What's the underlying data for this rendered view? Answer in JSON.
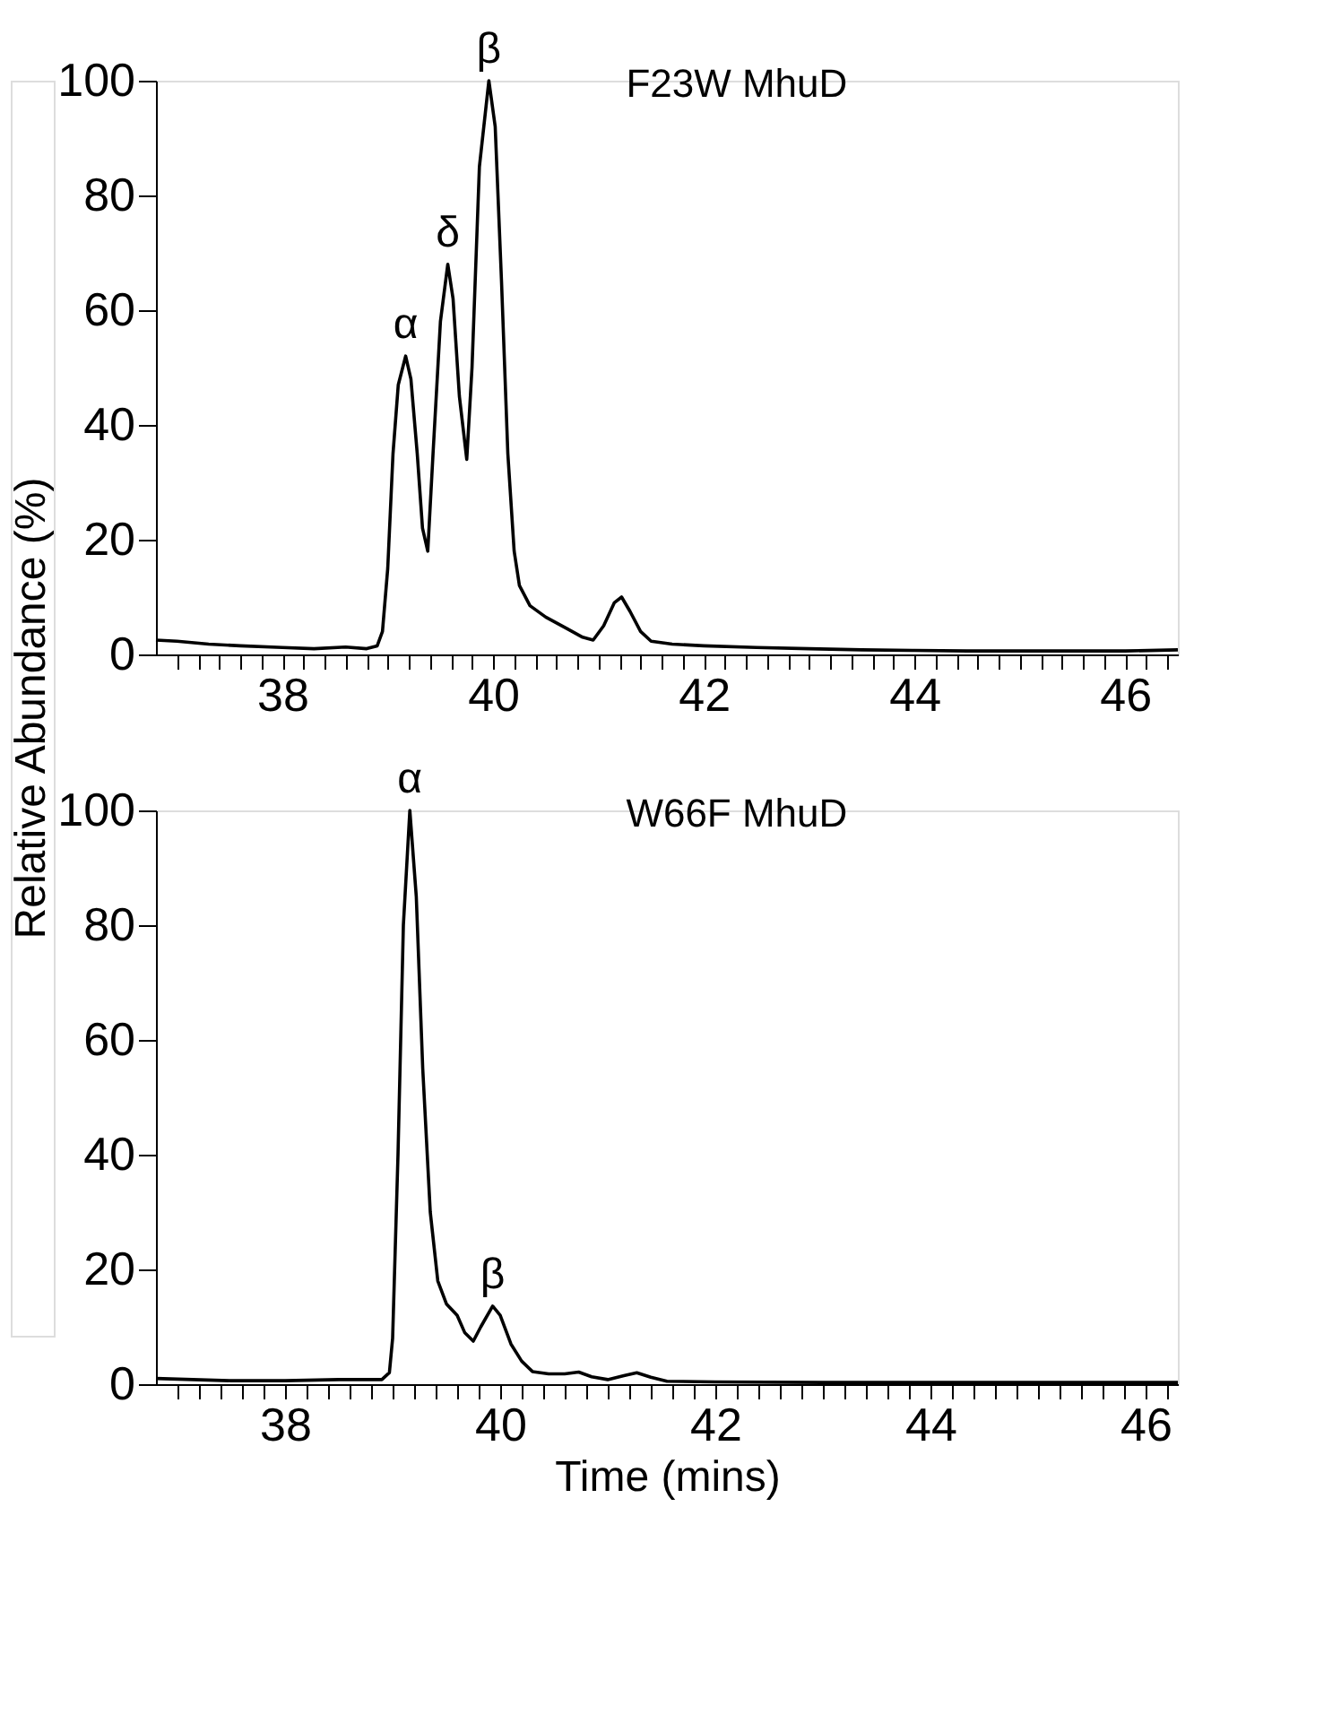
{
  "chart_data": [
    {
      "type": "line",
      "ylabel": "Relative Abundance (%)",
      "annotations": [
        "F23W MhuD",
        {
          "text": "α",
          "x": 39.17,
          "y": 52
        },
        {
          "text": "δ",
          "x": 39.57,
          "y": 68
        },
        {
          "text": "β",
          "x": 39.96,
          "y": 100
        }
      ],
      "x": [
        36.8,
        37.0,
        37.3,
        37.6,
        38.0,
        38.3,
        38.6,
        38.8,
        38.9,
        38.95,
        39.0,
        39.05,
        39.1,
        39.17,
        39.22,
        39.28,
        39.33,
        39.38,
        39.43,
        39.5,
        39.57,
        39.62,
        39.68,
        39.75,
        39.8,
        39.87,
        39.96,
        40.02,
        40.08,
        40.14,
        40.2,
        40.25,
        40.35,
        40.5,
        40.7,
        40.85,
        40.95,
        41.05,
        41.15,
        41.22,
        41.3,
        41.4,
        41.5,
        41.7,
        42.0,
        42.5,
        43.0,
        43.5,
        44.0,
        44.5,
        45.0,
        45.5,
        46.0,
        46.5
      ],
      "series": [
        {
          "color": "#000000",
          "values": [
            2.5,
            2.3,
            1.8,
            1.5,
            1.2,
            1.0,
            1.3,
            1.0,
            1.5,
            4,
            15,
            35,
            47,
            52,
            48,
            35,
            22,
            18,
            35,
            58,
            68,
            62,
            45,
            34,
            50,
            85,
            100,
            92,
            65,
            35,
            18,
            12,
            8.5,
            6.5,
            4.5,
            3.0,
            2.5,
            5,
            9,
            10,
            7.5,
            4,
            2.3,
            1.8,
            1.5,
            1.2,
            1.0,
            0.8,
            0.7,
            0.6,
            0.6,
            0.6,
            0.6,
            0.8
          ]
        }
      ],
      "xlim": [
        36.8,
        46.5
      ],
      "ylim": [
        0,
        100
      ],
      "yticks": [
        0,
        20,
        40,
        60,
        80,
        100
      ],
      "xticks": [
        {
          "value": 37.0,
          "label": null
        },
        {
          "value": 37.2,
          "label": null
        },
        {
          "value": 37.4,
          "label": null
        },
        {
          "value": 37.6,
          "label": null
        },
        {
          "value": 37.8,
          "label": null
        },
        38,
        {
          "value": 38.2,
          "label": null
        },
        {
          "value": 38.4,
          "label": null
        },
        {
          "value": 38.6,
          "label": null
        },
        {
          "value": 38.8,
          "label": null
        },
        {
          "value": 39.0,
          "label": null
        },
        {
          "value": 39.2,
          "label": null
        },
        {
          "value": 39.4,
          "label": null
        },
        {
          "value": 39.6,
          "label": null
        },
        {
          "value": 39.8,
          "label": null
        },
        40,
        {
          "value": 40.2,
          "label": null
        },
        {
          "value": 40.4,
          "label": null
        },
        {
          "value": 40.6,
          "label": null
        },
        {
          "value": 40.8,
          "label": null
        },
        {
          "value": 41.0,
          "label": null
        },
        {
          "value": 41.2,
          "label": null
        },
        {
          "value": 41.4,
          "label": null
        },
        {
          "value": 41.6,
          "label": null
        },
        {
          "value": 41.8,
          "label": null
        },
        42,
        {
          "value": 42.2,
          "label": null
        },
        {
          "value": 42.4,
          "label": null
        },
        {
          "value": 42.6,
          "label": null
        },
        {
          "value": 42.8,
          "label": null
        },
        {
          "value": 43.0,
          "label": null
        },
        {
          "value": 43.2,
          "label": null
        },
        {
          "value": 43.4,
          "label": null
        },
        {
          "value": 43.6,
          "label": null
        },
        {
          "value": 43.8,
          "label": null
        },
        44,
        {
          "value": 44.2,
          "label": null
        },
        {
          "value": 44.4,
          "label": null
        },
        {
          "value": 44.6,
          "label": null
        },
        {
          "value": 44.8,
          "label": null
        },
        {
          "value": 45.0,
          "label": null
        },
        {
          "value": 45.2,
          "label": null
        },
        {
          "value": 45.4,
          "label": null
        },
        {
          "value": 45.6,
          "label": null
        },
        {
          "value": 45.8,
          "label": null
        },
        46,
        {
          "value": 46.2,
          "label": null
        },
        {
          "value": 46.4,
          "label": null
        }
      ],
      "grid": false,
      "legend": false,
      "marker": "none",
      "line_style": "solid"
    },
    {
      "type": "line",
      "xlabel": "Time (mins)",
      "annotations": [
        "W66F MhuD",
        {
          "text": "α",
          "x": 39.16,
          "y": 100
        },
        {
          "text": "β",
          "x": 39.93,
          "y": 13.6
        }
      ],
      "x": [
        36.8,
        37.5,
        38.0,
        38.5,
        38.9,
        38.97,
        39.0,
        39.05,
        39.1,
        39.16,
        39.22,
        39.28,
        39.35,
        39.42,
        39.5,
        39.6,
        39.67,
        39.75,
        39.82,
        39.93,
        40.0,
        40.1,
        40.2,
        40.3,
        40.45,
        40.6,
        40.73,
        40.85,
        41.0,
        41.15,
        41.27,
        41.4,
        41.55,
        42.0,
        43.0,
        44.0,
        45.0,
        46.0,
        46.3
      ],
      "series": [
        {
          "color": "#000000",
          "values": [
            1,
            0.6,
            0.6,
            0.8,
            0.8,
            2,
            8,
            40,
            80,
            100,
            85,
            55,
            30,
            18,
            14,
            12,
            9,
            7.5,
            10,
            13.6,
            12,
            7,
            4,
            2.2,
            1.8,
            1.8,
            2.1,
            1.3,
            0.8,
            1.5,
            2,
            1.2,
            0.5,
            0.4,
            0.3,
            0.3,
            0.3,
            0.3,
            0.3
          ]
        }
      ],
      "xlim": [
        36.8,
        46.3
      ],
      "ylim": [
        0,
        100
      ],
      "yticks": [
        0,
        20,
        40,
        60,
        80,
        100
      ],
      "xticks": [
        {
          "value": 37.0,
          "label": null
        },
        {
          "value": 37.2,
          "label": null
        },
        {
          "value": 37.4,
          "label": null
        },
        {
          "value": 37.6,
          "label": null
        },
        {
          "value": 37.8,
          "label": null
        },
        38,
        {
          "value": 38.2,
          "label": null
        },
        {
          "value": 38.4,
          "label": null
        },
        {
          "value": 38.6,
          "label": null
        },
        {
          "value": 38.8,
          "label": null
        },
        {
          "value": 39.0,
          "label": null
        },
        {
          "value": 39.2,
          "label": null
        },
        {
          "value": 39.4,
          "label": null
        },
        {
          "value": 39.6,
          "label": null
        },
        {
          "value": 39.8,
          "label": null
        },
        40,
        {
          "value": 40.2,
          "label": null
        },
        {
          "value": 40.4,
          "label": null
        },
        {
          "value": 40.6,
          "label": null
        },
        {
          "value": 40.8,
          "label": null
        },
        {
          "value": 41.0,
          "label": null
        },
        {
          "value": 41.2,
          "label": null
        },
        {
          "value": 41.4,
          "label": null
        },
        {
          "value": 41.6,
          "label": null
        },
        {
          "value": 41.8,
          "label": null
        },
        42,
        {
          "value": 42.2,
          "label": null
        },
        {
          "value": 42.4,
          "label": null
        },
        {
          "value": 42.6,
          "label": null
        },
        {
          "value": 42.8,
          "label": null
        },
        {
          "value": 43.0,
          "label": null
        },
        {
          "value": 43.2,
          "label": null
        },
        {
          "value": 43.4,
          "label": null
        },
        {
          "value": 43.6,
          "label": null
        },
        {
          "value": 43.8,
          "label": null
        },
        44,
        {
          "value": 44.2,
          "label": null
        },
        {
          "value": 44.4,
          "label": null
        },
        {
          "value": 44.6,
          "label": null
        },
        {
          "value": 44.8,
          "label": null
        },
        {
          "value": 45.0,
          "label": null
        },
        {
          "value": 45.2,
          "label": null
        },
        {
          "value": 45.4,
          "label": null
        },
        {
          "value": 45.6,
          "label": null
        },
        {
          "value": 45.8,
          "label": null
        },
        46,
        {
          "value": 46.2,
          "label": null
        }
      ],
      "grid": false,
      "legend": false,
      "marker": "none",
      "line_style": "solid"
    }
  ]
}
